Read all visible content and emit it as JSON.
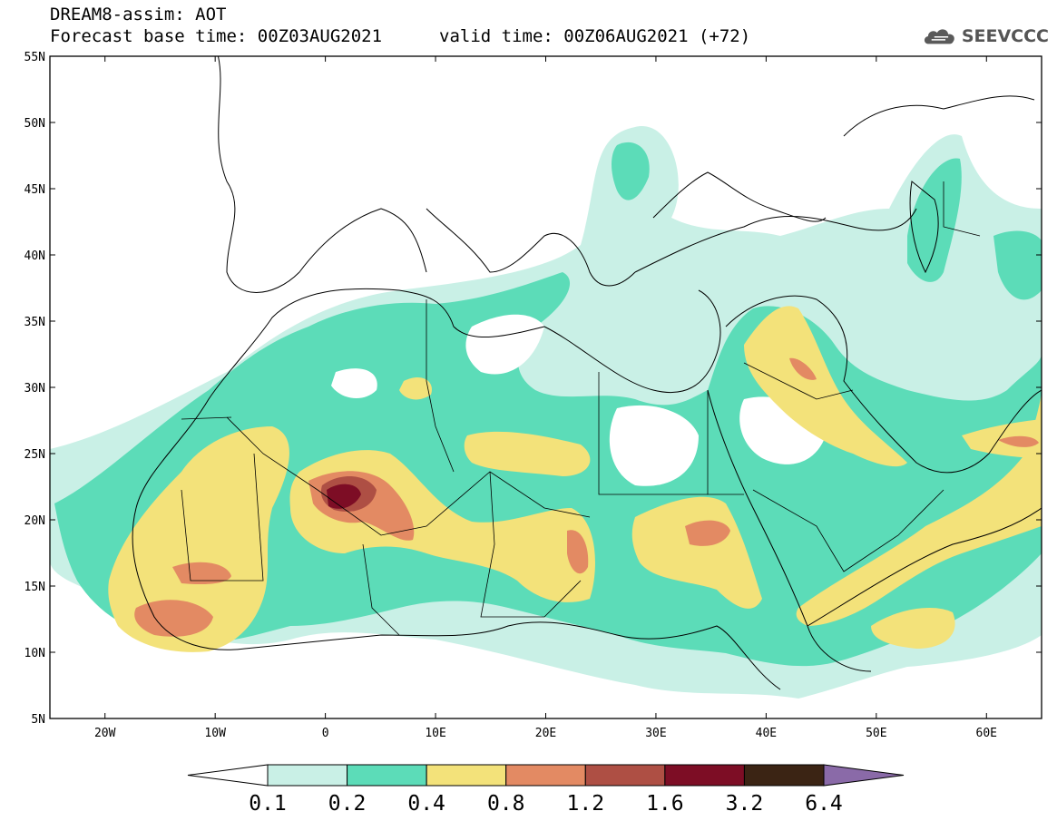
{
  "header": {
    "title": "DREAM8-assim: AOT",
    "base_time": "Forecast base time: 00Z03AUG2021",
    "valid_time": "valid time: 00Z06AUG2021 (+72)"
  },
  "logo": {
    "icon": "cloud-logo-icon",
    "text": "SEEVCCC"
  },
  "map": {
    "lon_range": [
      -25,
      65
    ],
    "lat_range": [
      5,
      55
    ],
    "lat_labels": [
      "55N",
      "50N",
      "45N",
      "40N",
      "35N",
      "30N",
      "25N",
      "20N",
      "15N",
      "10N",
      "5N"
    ],
    "lon_labels": [
      "20W",
      "10W",
      "0",
      "10E",
      "20E",
      "30E",
      "40E",
      "50E",
      "60E"
    ]
  },
  "colorbar": {
    "colors": [
      "#ffffff",
      "#c9f0e6",
      "#5cdcb8",
      "#f3e27a",
      "#e38a63",
      "#ae4f44",
      "#7d0d25",
      "#3b2414",
      "#8a6aa8"
    ],
    "labels": [
      "0.1",
      "0.2",
      "0.4",
      "0.8",
      "1.2",
      "1.6",
      "3.2",
      "6.4"
    ]
  }
}
